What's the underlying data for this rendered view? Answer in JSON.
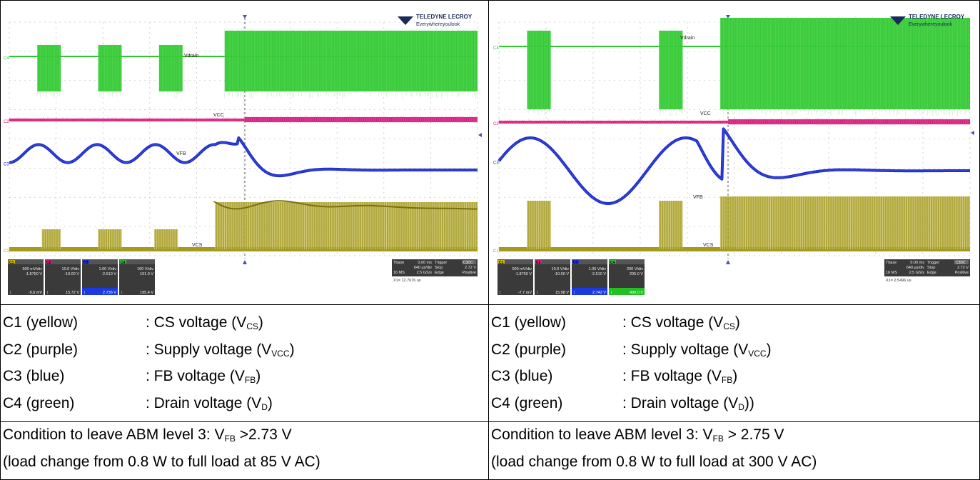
{
  "panels": [
    {
      "id": "left",
      "logo": {
        "brand": "TELEDYNE LECROY",
        "tagline": "Everywhereyoulook"
      },
      "trace_labels": {
        "vdrain": "Vdrain",
        "vcc": "VCC",
        "vfb": "VFB",
        "vcs": "VCS"
      },
      "channel_tags": {
        "c1": "C1",
        "c2": "C2",
        "c3": "C3",
        "c4": "C4"
      },
      "channels": [
        {
          "tag": "C1",
          "color": "#c9b800",
          "scale": "500 mV/div",
          "offset": "-1.8750 V",
          "measure": "-9.6 mV"
        },
        {
          "tag": "C2",
          "color": "#d0207a",
          "scale": "10.0 V/div",
          "offset": "-10.00 V",
          "measure": "15.72 V"
        },
        {
          "tag": "C3",
          "color": "#2030d0",
          "scale": "1.00 V/div",
          "offset": "-2.510 V",
          "measure": "2.736 V"
        },
        {
          "tag": "C4",
          "color": "#30c030",
          "scale": "100 V/div",
          "offset": "101.0 V",
          "measure": "195.4 V"
        }
      ],
      "timebase": {
        "tbase_label": "Tbase",
        "tbase_val": "0.00 ms",
        "trigger_label": "Trigger",
        "trigger_ch": "C3DC",
        "per_div": "640 µs/div",
        "mode": "Stop",
        "level": "2.72 V",
        "memory": "16 MS",
        "rate": "2.5 GS/s",
        "type": "Edge",
        "slope": "Positive",
        "cursor": "X1= 12.7676 us"
      }
    },
    {
      "id": "right",
      "logo": {
        "brand": "TELEDYNE LECROY",
        "tagline": "Everywhereyoulook"
      },
      "trace_labels": {
        "vdrain": "Vdrain",
        "vcc": "VCC",
        "vfb": "VFB",
        "vcs": "VCS"
      },
      "channel_tags": {
        "c1": "C1",
        "c2": "C2",
        "c3": "C3",
        "c4": "C4"
      },
      "channels": [
        {
          "tag": "C1",
          "color": "#c9b800",
          "scale": "500 mV/div",
          "offset": "-1.8750 V",
          "measure": "-7.7 mV"
        },
        {
          "tag": "C2",
          "color": "#d0207a",
          "scale": "10.0 V/div",
          "offset": "-10.00 V",
          "measure": "15.98 V"
        },
        {
          "tag": "C3",
          "color": "#2030d0",
          "scale": "1.00 V/div",
          "offset": "-2.510 V",
          "measure": "2.742 V"
        },
        {
          "tag": "C4",
          "color": "#30c030",
          "scale": "200 V/div",
          "offset": "205.0 V",
          "measure": "490.0 V"
        }
      ],
      "timebase": {
        "tbase_label": "Tbase",
        "tbase_val": "0.00 ms",
        "trigger_label": "Trigger",
        "trigger_ch": "C3DC",
        "per_div": "640 µs/div",
        "mode": "Stop",
        "level": "2.72 V",
        "memory": "16 MS",
        "rate": "2.5 GS/s",
        "type": "Edge",
        "slope": "Positive",
        "cursor": "X1= 2.5496 us"
      }
    }
  ],
  "legend": [
    {
      "label": "C1 (yellow)",
      "desc_pre": ": CS voltage (V",
      "sub": "CS",
      "desc_post": ")"
    },
    {
      "label": "C2 (purple)",
      "desc_pre": ": Supply voltage (V",
      "sub": "VCC",
      "desc_post": ")"
    },
    {
      "label": "C3 (blue)",
      "desc_pre": ": FB voltage (V",
      "sub": "FB",
      "desc_post": ")"
    },
    {
      "label": "C4 (green)",
      "desc_pre": ": Drain voltage (V",
      "sub": "D",
      "desc_post": ")"
    }
  ],
  "legend_right_last_post": "))",
  "conditions": [
    {
      "line1_pre": "Condition to leave ABM level 3: V",
      "sub": "FB",
      "line1_post": " >2.73 V",
      "line2": "(load change from 0.8 W to full load at 85 V AC)"
    },
    {
      "line1_pre": "Condition to leave ABM level 3: V",
      "sub": "FB",
      "line1_post": " > 2.75 V",
      "line2": "(load change from 0.8 W to full load at 300 V AC)"
    }
  ],
  "colors": {
    "green": "#2ec82e",
    "magenta": "#d6207e",
    "blue": "#1a28c8",
    "olive": "#a39a1e",
    "grid": "#c8c8c8"
  },
  "chart_data": [
    {
      "type": "line",
      "title": "",
      "series": [
        {
          "name": "Vdrain",
          "description_bursts": [
            [
              0.06,
              0.11
            ],
            [
              0.19,
              0.24
            ],
            [
              0.32,
              0.37
            ],
            [
              0.46,
              1.0
            ]
          ]
        },
        {
          "name": "VCC"
        },
        {
          "name": "VFB"
        },
        {
          "name": "VCS",
          "description_bursts": [
            [
              0.07,
              0.11
            ],
            [
              0.19,
              0.24
            ],
            [
              0.31,
              0.36
            ],
            [
              0.44,
              1.0
            ]
          ]
        }
      ],
      "xlabel": "",
      "ylabel": ""
    },
    {
      "type": "line",
      "title": "",
      "series": [
        {
          "name": "Vdrain",
          "description_bursts": [
            [
              0.06,
              0.11
            ],
            [
              0.34,
              0.39
            ],
            [
              0.47,
              1.0
            ]
          ]
        },
        {
          "name": "VCC"
        },
        {
          "name": "VFB"
        },
        {
          "name": "VCS",
          "description_bursts": [
            [
              0.06,
              0.11
            ],
            [
              0.34,
              0.39
            ],
            [
              0.47,
              1.0
            ]
          ]
        }
      ],
      "xlabel": "",
      "ylabel": ""
    }
  ]
}
